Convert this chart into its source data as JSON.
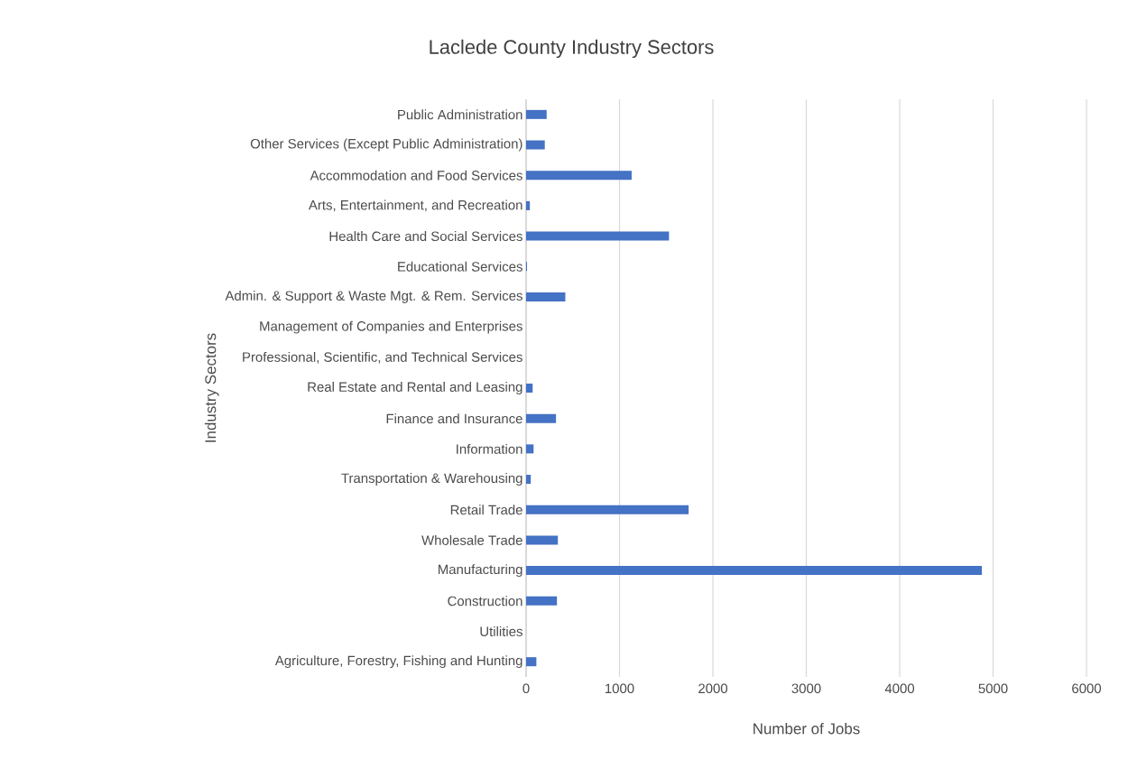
{
  "chart_data": {
    "type": "bar",
    "orientation": "horizontal",
    "title": "Laclede County Industry Sectors",
    "xlabel": "Number of Jobs",
    "ylabel": "Industry Sectors",
    "categories": [
      "Public Administration",
      "Other Services (Except Public Administration)",
      "Accommodation and Food Services",
      "Arts, Entertainment, and Recreation",
      "Health Care and Social Services",
      "Educational Services",
      "Admin. & Support & Waste Mgt. & Rem. Services",
      "Management of Companies and Enterprises",
      "Professional, Scientific, and Technical Services",
      "Real Estate and Rental and Leasing",
      "Finance and Insurance",
      "Information",
      "Transportation & Warehousing",
      "Retail Trade",
      "Wholesale Trade",
      "Manufacturing",
      "Construction",
      "Utilities",
      "Agriculture, Forestry, Fishing and Hunting"
    ],
    "values": [
      220,
      200,
      1130,
      40,
      1530,
      10,
      420,
      0,
      0,
      70,
      320,
      80,
      50,
      1740,
      340,
      4880,
      330,
      0,
      110
    ],
    "color": "#4472c4",
    "xlim": [
      0,
      6000
    ],
    "xticks": [
      0,
      1000,
      2000,
      3000,
      4000,
      5000,
      6000
    ],
    "grid": "x"
  }
}
